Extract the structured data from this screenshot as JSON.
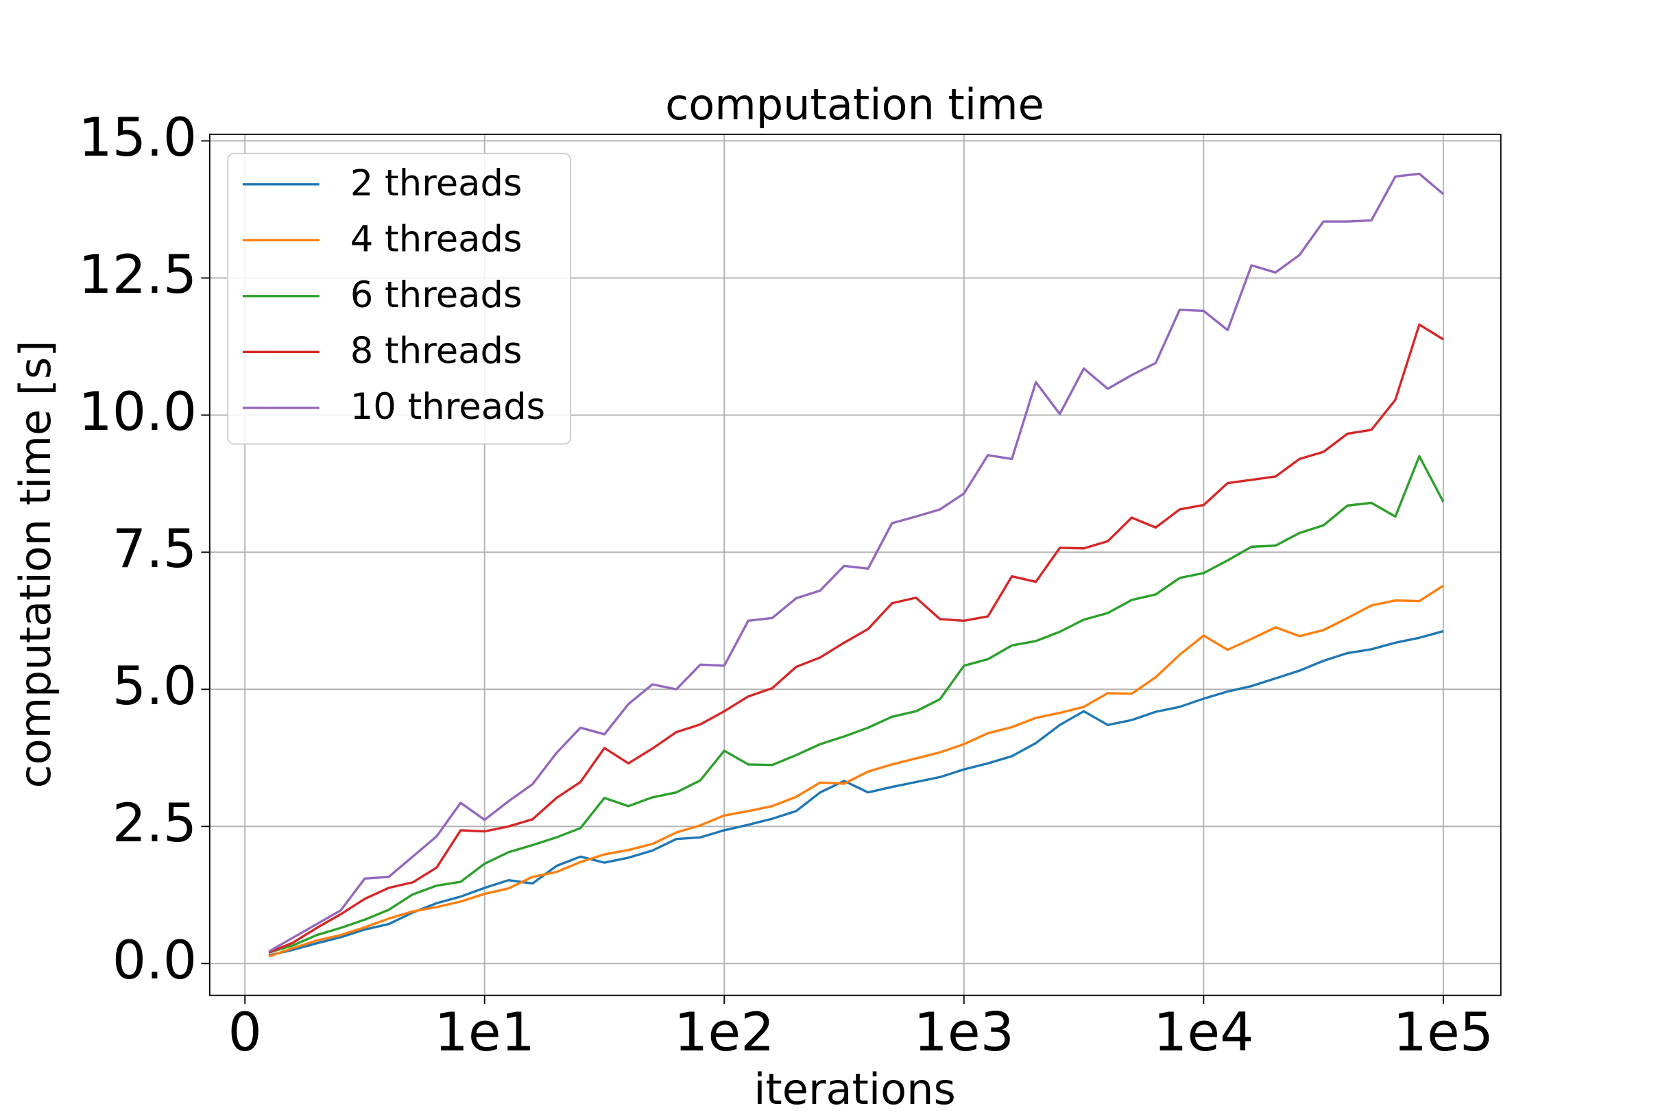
{
  "chart_data": {
    "type": "line",
    "title": "computation time",
    "x_label": "iterations",
    "y_label": "computation time [s]",
    "x": [
      0.1,
      0.2,
      0.3,
      0.4,
      0.5,
      0.6,
      0.7,
      0.8,
      0.9,
      1.0,
      1.1,
      1.2,
      1.3,
      1.4,
      1.5,
      1.6,
      1.7,
      1.8,
      1.9,
      2.0,
      2.1,
      2.2,
      2.3,
      2.4,
      2.5,
      2.6,
      2.7,
      2.8,
      2.9,
      3.0,
      3.1,
      3.2,
      3.3,
      3.4,
      3.5,
      3.6,
      3.7,
      3.8,
      3.9,
      4.0,
      4.1,
      4.2,
      4.3,
      4.4,
      4.5,
      4.6,
      4.7,
      4.8,
      4.9,
      5.0
    ],
    "series": [
      {
        "name": "2 threads",
        "color": "#1f77b4",
        "values": [
          0.15,
          0.25,
          0.37,
          0.48,
          0.62,
          0.72,
          0.93,
          1.1,
          1.22,
          1.38,
          1.52,
          1.46,
          1.78,
          1.95,
          1.84,
          1.93,
          2.06,
          2.27,
          2.3,
          2.43,
          2.53,
          2.64,
          2.78,
          3.12,
          3.33,
          3.12,
          3.22,
          3.31,
          3.4,
          3.54,
          3.65,
          3.78,
          4.02,
          4.35,
          4.6,
          4.35,
          4.44,
          4.59,
          4.68,
          4.83,
          4.96,
          5.06,
          5.2,
          5.34,
          5.52,
          5.66,
          5.73,
          5.85,
          5.94,
          6.06
        ]
      },
      {
        "name": "4 threads",
        "color": "#ff7f0e",
        "values": [
          0.13,
          0.28,
          0.42,
          0.52,
          0.66,
          0.82,
          0.95,
          1.03,
          1.13,
          1.27,
          1.37,
          1.58,
          1.67,
          1.85,
          1.99,
          2.07,
          2.18,
          2.39,
          2.52,
          2.7,
          2.78,
          2.87,
          3.04,
          3.3,
          3.28,
          3.5,
          3.63,
          3.74,
          3.85,
          4.0,
          4.2,
          4.31,
          4.48,
          4.57,
          4.68,
          4.93,
          4.92,
          5.22,
          5.63,
          5.98,
          5.72,
          5.92,
          6.13,
          5.97,
          6.08,
          6.3,
          6.53,
          6.62,
          6.61,
          6.89
        ]
      },
      {
        "name": "6 threads",
        "color": "#2ca02c",
        "values": [
          0.2,
          0.33,
          0.52,
          0.65,
          0.8,
          0.98,
          1.26,
          1.42,
          1.49,
          1.82,
          2.03,
          2.16,
          2.3,
          2.47,
          3.02,
          2.87,
          3.03,
          3.12,
          3.34,
          3.88,
          3.63,
          3.62,
          3.8,
          4.0,
          4.14,
          4.3,
          4.5,
          4.6,
          4.82,
          5.43,
          5.55,
          5.8,
          5.88,
          6.05,
          6.27,
          6.39,
          6.63,
          6.73,
          7.03,
          7.12,
          7.35,
          7.6,
          7.62,
          7.85,
          7.99,
          8.35,
          8.4,
          8.15,
          9.25,
          8.42
        ]
      },
      {
        "name": "8 threads",
        "color": "#d62728",
        "values": [
          0.2,
          0.38,
          0.65,
          0.9,
          1.18,
          1.38,
          1.48,
          1.75,
          2.43,
          2.41,
          2.5,
          2.63,
          3.02,
          3.31,
          3.93,
          3.65,
          3.92,
          4.22,
          4.36,
          4.6,
          4.87,
          5.02,
          5.41,
          5.58,
          5.85,
          6.1,
          6.57,
          6.67,
          6.28,
          6.25,
          6.33,
          7.06,
          6.96,
          7.58,
          7.57,
          7.7,
          8.13,
          7.95,
          8.28,
          8.36,
          8.76,
          8.82,
          8.88,
          9.2,
          9.33,
          9.66,
          9.73,
          10.28,
          11.65,
          11.38
        ]
      },
      {
        "name": "10 threads",
        "color": "#9467bd",
        "values": [
          0.22,
          0.47,
          0.72,
          0.97,
          1.55,
          1.58,
          1.95,
          2.32,
          2.93,
          2.62,
          2.96,
          3.27,
          3.84,
          4.3,
          4.18,
          4.73,
          5.09,
          5.0,
          5.45,
          5.43,
          6.25,
          6.3,
          6.66,
          6.8,
          7.25,
          7.2,
          8.03,
          8.15,
          8.28,
          8.57,
          9.27,
          9.2,
          10.6,
          10.02,
          10.85,
          10.48,
          10.73,
          10.95,
          11.92,
          11.9,
          11.55,
          12.73,
          12.6,
          12.92,
          13.53,
          13.53,
          13.55,
          14.35,
          14.4,
          14.03
        ]
      }
    ],
    "xlim": [
      -0.147,
      5.24
    ],
    "ylim": [
      -0.58,
      15.12
    ],
    "xticks": [
      0,
      {
        "value": 1,
        "label": "1e1"
      },
      {
        "value": 2,
        "label": "1e2"
      },
      {
        "value": 3,
        "label": "1e3"
      },
      {
        "value": 4,
        "label": "1e4"
      },
      {
        "value": 5,
        "label": "1e5"
      }
    ],
    "yticks": [
      {
        "value": 0,
        "label": "0.0"
      },
      2.5,
      {
        "value": 5,
        "label": "5.0"
      },
      7.5,
      {
        "value": 10,
        "label": "10.0"
      },
      12.5,
      {
        "value": 15,
        "label": "15.0"
      }
    ],
    "grid": true,
    "legend": "upper left"
  }
}
